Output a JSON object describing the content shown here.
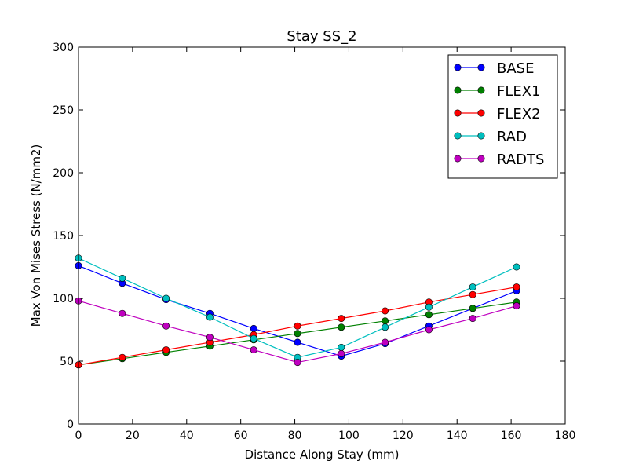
{
  "chart_data": {
    "type": "line",
    "title": "Stay SS_2",
    "xlabel": "Distance Along Stay (mm)",
    "ylabel": "Max Von Mises Stress (N/mm2)",
    "xlim": [
      0,
      180
    ],
    "ylim": [
      0,
      300
    ],
    "xticks": [
      "0",
      "20",
      "40",
      "60",
      "80",
      "100",
      "120",
      "140",
      "160",
      "180"
    ],
    "yticks": [
      "0",
      "50",
      "100",
      "150",
      "200",
      "250",
      "300"
    ],
    "grid": false,
    "legend_position": "top-right",
    "x": [
      0,
      16.2,
      32.4,
      48.6,
      64.8,
      81.0,
      97.2,
      113.4,
      129.6,
      145.8,
      162.0
    ],
    "series": [
      {
        "name": "BASE",
        "color": "#0000ff",
        "values": [
          126,
          112,
          99,
          88,
          76,
          65,
          54,
          64,
          78,
          92,
          106
        ]
      },
      {
        "name": "FLEX1",
        "color": "#008000",
        "values": [
          47,
          52,
          57,
          62,
          67,
          72,
          77,
          82,
          87,
          92,
          97
        ]
      },
      {
        "name": "FLEX2",
        "color": "#ff0000",
        "values": [
          47,
          53,
          59,
          65,
          71,
          78,
          84,
          90,
          97,
          103,
          109
        ]
      },
      {
        "name": "RAD",
        "color": "#00bfbf",
        "values": [
          132,
          116,
          100,
          85,
          68,
          53,
          61,
          77,
          93,
          109,
          125
        ]
      },
      {
        "name": "RADTS",
        "color": "#bf00bf",
        "values": [
          98,
          88,
          78,
          69,
          59,
          49,
          56,
          65,
          75,
          84,
          94
        ]
      }
    ]
  }
}
